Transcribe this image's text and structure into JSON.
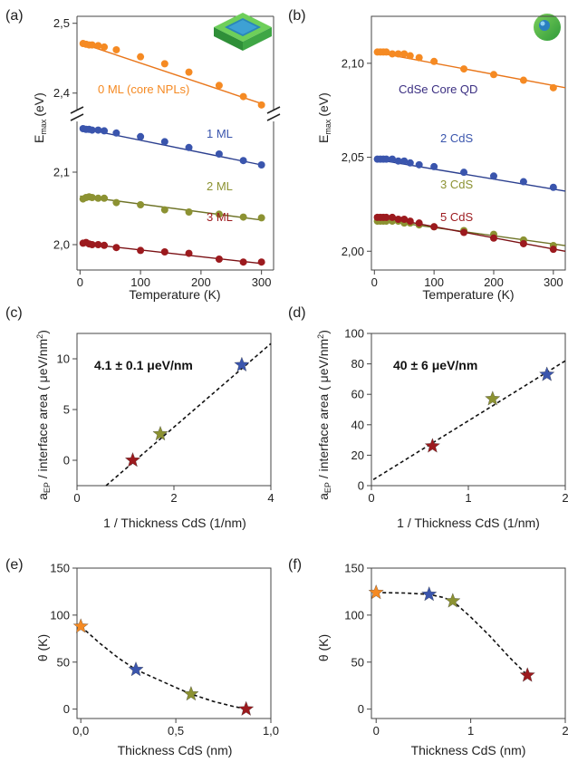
{
  "colors": {
    "orange": "#f58a23",
    "blue": "#3a55ad",
    "olive": "#8c9232",
    "darkred": "#9c1a1e",
    "dark_orange_line": "#e9761a",
    "dark_blue_line": "#2b3f8f",
    "dark_olive_line": "#6f7428",
    "dark_red_line": "#7b1014",
    "qd_label": "#3b2f82"
  },
  "icons": {
    "nanoplatelet": "nanoplatelet-3d-icon",
    "quantum_dot": "quantum-dot-sphere-icon"
  },
  "chart_data": [
    {
      "panel": "(a)",
      "type": "scatter",
      "xlabel": "Temperature (K)",
      "ylabel_main": "E",
      "ylabel_sub": "max",
      "ylabel_unit": "(eV)",
      "xlim": [
        -5,
        320
      ],
      "ylim_upper": [
        2.375,
        2.51
      ],
      "ylim_lower": [
        1.965,
        2.17
      ],
      "xticks": [
        0,
        100,
        200,
        300
      ],
      "xtick_labels": [
        "0",
        "100",
        "200",
        "300"
      ],
      "yticks_upper": [
        2.4,
        2.5
      ],
      "ytick_labels_upper": [
        "2,4",
        "2,5"
      ],
      "yticks_lower": [
        2.0,
        2.1
      ],
      "ytick_labels_lower": [
        "2,0",
        "2,1"
      ],
      "series": [
        {
          "name": "0 ML (core NPLs)",
          "color": "orange",
          "axis": "upper",
          "x": [
            5,
            10,
            15,
            20,
            30,
            40,
            60,
            100,
            140,
            180,
            230,
            270,
            300
          ],
          "y": [
            2.471,
            2.47,
            2.469,
            2.469,
            2.468,
            2.466,
            2.462,
            2.452,
            2.442,
            2.43,
            2.411,
            2.395,
            2.383
          ],
          "fit": [
            [
              0,
              2.472
            ],
            [
              300,
              2.385
            ]
          ]
        },
        {
          "name": "1 ML",
          "color": "blue",
          "axis": "lower",
          "x": [
            5,
            10,
            15,
            20,
            30,
            40,
            60,
            100,
            140,
            180,
            230,
            270,
            300
          ],
          "y": [
            2.16,
            2.159,
            2.159,
            2.158,
            2.158,
            2.157,
            2.154,
            2.149,
            2.142,
            2.134,
            2.125,
            2.116,
            2.11
          ],
          "fit": [
            [
              0,
              2.161
            ],
            [
              300,
              2.11
            ]
          ]
        },
        {
          "name": "2 ML",
          "color": "olive",
          "axis": "lower",
          "x": [
            5,
            10,
            15,
            20,
            30,
            40,
            60,
            100,
            140,
            180,
            230,
            270,
            300
          ],
          "y": [
            2.063,
            2.065,
            2.066,
            2.065,
            2.064,
            2.064,
            2.058,
            2.055,
            2.048,
            2.045,
            2.042,
            2.038,
            2.037
          ],
          "fit": [
            [
              0,
              2.067
            ],
            [
              300,
              2.034
            ]
          ]
        },
        {
          "name": "3 ML",
          "color": "darkred",
          "axis": "lower",
          "x": [
            5,
            10,
            15,
            20,
            30,
            40,
            60,
            100,
            140,
            180,
            230,
            270,
            300
          ],
          "y": [
            2.002,
            2.003,
            2.001,
            2.0,
            2.0,
            1.999,
            1.996,
            1.992,
            1.99,
            1.988,
            1.98,
            1.976,
            1.976
          ],
          "fit": [
            [
              0,
              2.002
            ],
            [
              300,
              1.974
            ]
          ]
        }
      ]
    },
    {
      "panel": "(b)",
      "type": "scatter",
      "xlabel": "Temperature (K)",
      "ylabel_main": "E",
      "ylabel_sub": "max",
      "ylabel_unit": "(eV)",
      "xlim": [
        -5,
        320
      ],
      "ylim": [
        1.99,
        2.125
      ],
      "xticks": [
        0,
        100,
        200,
        300
      ],
      "xtick_labels": [
        "0",
        "100",
        "200",
        "300"
      ],
      "yticks": [
        2.0,
        2.05,
        2.1
      ],
      "ytick_labels": [
        "2,00",
        "2,05",
        "2,10"
      ],
      "series": [
        {
          "name": "CdSe Core QD",
          "color": "orange",
          "label_color": "qd_label",
          "x": [
            5,
            10,
            15,
            20,
            30,
            40,
            50,
            60,
            75,
            100,
            150,
            200,
            250,
            300
          ],
          "y": [
            2.106,
            2.106,
            2.106,
            2.106,
            2.105,
            2.105,
            2.105,
            2.104,
            2.103,
            2.101,
            2.097,
            2.094,
            2.091,
            2.087
          ],
          "fit": [
            [
              0,
              2.106
            ],
            [
              320,
              2.087
            ]
          ]
        },
        {
          "name": "2 CdS",
          "color": "blue",
          "x": [
            5,
            10,
            15,
            20,
            30,
            40,
            50,
            60,
            75,
            100,
            150,
            200,
            250,
            300
          ],
          "y": [
            2.049,
            2.049,
            2.049,
            2.049,
            2.049,
            2.048,
            2.048,
            2.047,
            2.046,
            2.045,
            2.042,
            2.04,
            2.037,
            2.034
          ],
          "fit": [
            [
              0,
              2.049
            ],
            [
              320,
              2.032
            ]
          ]
        },
        {
          "name": "3 CdS",
          "color": "olive",
          "x": [
            5,
            10,
            15,
            20,
            30,
            40,
            50,
            60,
            75,
            100,
            150,
            200,
            250,
            300
          ],
          "y": [
            2.016,
            2.016,
            2.016,
            2.016,
            2.016,
            2.016,
            2.015,
            2.015,
            2.014,
            2.013,
            2.011,
            2.009,
            2.006,
            2.003
          ],
          "fit": [
            [
              0,
              2.017
            ],
            [
              320,
              2.003
            ]
          ]
        },
        {
          "name": "5 CdS",
          "color": "darkred",
          "x": [
            5,
            10,
            15,
            20,
            30,
            40,
            50,
            60,
            75,
            100,
            150,
            200,
            250,
            300
          ],
          "y": [
            2.018,
            2.018,
            2.018,
            2.018,
            2.018,
            2.017,
            2.017,
            2.016,
            2.015,
            2.013,
            2.01,
            2.007,
            2.004,
            2.001
          ],
          "fit": [
            [
              0,
              2.019
            ],
            [
              320,
              2.0
            ]
          ]
        }
      ]
    },
    {
      "panel": "(c)",
      "type": "scatter",
      "xlabel": "1 / Thickness CdS (1/nm)",
      "ylabel": "a_EP / interface area (μeV/nm²)",
      "ylabel_a": "a",
      "ylabel_sub": "EP",
      "ylabel_rest": " / interface area (  μeV/nm",
      "ylabel_sup": "2",
      "ylabel_close": ")",
      "annotation": "4.1 ± 0.1 μeV/nm",
      "xlim": [
        0,
        4
      ],
      "ylim": [
        -2.5,
        12.5
      ],
      "xticks": [
        0,
        2,
        4
      ],
      "xtick_labels": [
        "0",
        "2",
        "4"
      ],
      "yticks": [
        0,
        5,
        10
      ],
      "ytick_labels": [
        "0",
        "5",
        "10"
      ],
      "points": [
        {
          "x": 1.15,
          "y": 0.0,
          "color": "darkred"
        },
        {
          "x": 1.72,
          "y": 2.6,
          "color": "olive"
        },
        {
          "x": 3.4,
          "y": 9.4,
          "color": "blue"
        }
      ],
      "fit": [
        [
          0.6,
          -2.5
        ],
        [
          4.0,
          11.5
        ]
      ]
    },
    {
      "panel": "(d)",
      "type": "scatter",
      "xlabel": "1 / Thickness CdS (1/nm)",
      "ylabel": "a_EP / interface area (μeV/nm²)",
      "ylabel_a": "a",
      "ylabel_sub": "EP",
      "ylabel_rest": " / interface area (  μeV/nm",
      "ylabel_sup": "2",
      "ylabel_close": ")",
      "annotation": "40 ± 6 μeV/nm",
      "xlim": [
        0,
        2
      ],
      "ylim": [
        0,
        100
      ],
      "xticks": [
        0,
        1,
        2
      ],
      "xtick_labels": [
        "0",
        "1",
        "2"
      ],
      "yticks": [
        0,
        20,
        40,
        60,
        80,
        100
      ],
      "ytick_labels": [
        "0",
        "20",
        "40",
        "60",
        "80",
        "100"
      ],
      "points": [
        {
          "x": 0.63,
          "y": 26,
          "color": "darkred"
        },
        {
          "x": 1.25,
          "y": 57,
          "color": "olive"
        },
        {
          "x": 1.81,
          "y": 73,
          "color": "blue"
        }
      ],
      "fit": [
        [
          0.02,
          4
        ],
        [
          2.0,
          82
        ]
      ]
    },
    {
      "panel": "(e)",
      "type": "scatter",
      "xlabel": "Thickness CdS (nm)",
      "ylabel": "θ (K)",
      "xlim": [
        -0.02,
        1.0
      ],
      "ylim": [
        -10,
        150
      ],
      "xticks": [
        0,
        0.5,
        1.0
      ],
      "xtick_labels": [
        "0,0",
        "0,5",
        "1,0"
      ],
      "yticks": [
        0,
        50,
        100,
        150
      ],
      "ytick_labels": [
        "0",
        "50",
        "100",
        "150"
      ],
      "points": [
        {
          "x": 0.0,
          "y": 88,
          "color": "orange"
        },
        {
          "x": 0.29,
          "y": 42,
          "color": "blue"
        },
        {
          "x": 0.58,
          "y": 16,
          "color": "olive"
        },
        {
          "x": 0.87,
          "y": 0,
          "color": "darkred"
        }
      ],
      "curve": [
        [
          0.0,
          88
        ],
        [
          0.1,
          70
        ],
        [
          0.2,
          54
        ],
        [
          0.29,
          42
        ],
        [
          0.4,
          32
        ],
        [
          0.5,
          23
        ],
        [
          0.58,
          16
        ],
        [
          0.7,
          8
        ],
        [
          0.8,
          3
        ],
        [
          0.87,
          0
        ]
      ]
    },
    {
      "panel": "(f)",
      "type": "scatter",
      "xlabel": "Thickness CdS (nm)",
      "ylabel": "θ (K)",
      "xlim": [
        -0.05,
        2.0
      ],
      "ylim": [
        -10,
        150
      ],
      "xticks": [
        0,
        1,
        2
      ],
      "xtick_labels": [
        "0",
        "1",
        "2"
      ],
      "yticks": [
        0,
        50,
        100,
        150
      ],
      "ytick_labels": [
        "0",
        "50",
        "100",
        "150"
      ],
      "points": [
        {
          "x": 0.0,
          "y": 124,
          "color": "orange"
        },
        {
          "x": 0.56,
          "y": 122,
          "color": "blue"
        },
        {
          "x": 0.81,
          "y": 115,
          "color": "olive"
        },
        {
          "x": 1.6,
          "y": 36,
          "color": "darkred"
        }
      ],
      "curve": [
        [
          0.0,
          124
        ],
        [
          0.3,
          123.5
        ],
        [
          0.56,
          122
        ],
        [
          0.7,
          119
        ],
        [
          0.81,
          115
        ],
        [
          1.0,
          98
        ],
        [
          1.2,
          78
        ],
        [
          1.4,
          56
        ],
        [
          1.6,
          36
        ]
      ]
    }
  ]
}
